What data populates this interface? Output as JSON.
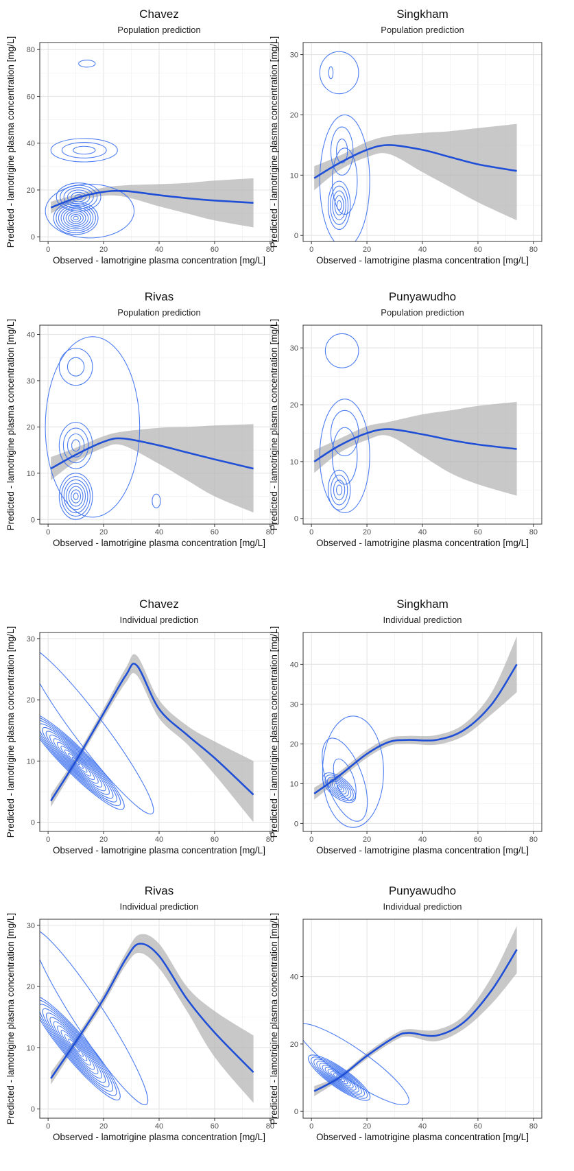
{
  "colors": {
    "contour": "#3a6ff0",
    "smooth": "#1f4fd6",
    "ribbon": "#b3b3b3",
    "grid": "#e6e6e6",
    "border": "#333333"
  },
  "chart_data": [
    {
      "type": "line",
      "title": "Chavez",
      "subtitle": "Population prediction",
      "xlabel": "Observed - lamotrigine plasma concentration [mg/L]",
      "ylabel": "Predicted - lamotrigine plasma concentration [mg/L]",
      "xlim": [
        -3,
        83
      ],
      "ylim": [
        -2,
        83
      ],
      "xticks": [
        0,
        20,
        40,
        60,
        80
      ],
      "yticks": [
        0,
        20,
        40,
        60,
        80
      ],
      "grid": true,
      "series": [
        {
          "x": [
            1,
            10,
            20,
            28,
            40,
            50,
            60,
            74
          ],
          "y": [
            12.5,
            16.5,
            19.2,
            19.5,
            17.8,
            16.5,
            15.5,
            14.5
          ],
          "lower": [
            10,
            15,
            17.5,
            17,
            13,
            10,
            7,
            4
          ],
          "upper": [
            15,
            18,
            21,
            22,
            22.5,
            23,
            24,
            25
          ]
        }
      ],
      "contours": [
        {
          "cx": 10,
          "cy": 8,
          "rx": 8,
          "ry": 7,
          "n": 9
        },
        {
          "cx": 11,
          "cy": 17,
          "rx": 8,
          "ry": 6,
          "n": 6
        },
        {
          "cx": 13,
          "cy": 37,
          "rx": 12,
          "ry": 5,
          "n": 3
        },
        {
          "cx": 14,
          "cy": 74,
          "rx": 3,
          "ry": 1.5,
          "n": 1
        },
        {
          "cx": 15,
          "cy": 11,
          "rx": 16,
          "ry": 11.5,
          "n": 1
        }
      ]
    },
    {
      "type": "line",
      "title": "Singkham",
      "subtitle": "Population prediction",
      "xlabel": "Observed - lamotrigine plasma concentration [mg/L]",
      "ylabel": "Predicted - lamotrigine plasma concentration [mg/L]",
      "xlim": [
        -3,
        83
      ],
      "ylim": [
        -1,
        32
      ],
      "xticks": [
        0,
        20,
        40,
        60,
        80
      ],
      "yticks": [
        0,
        10,
        20,
        30
      ],
      "grid": true,
      "series": [
        {
          "x": [
            1,
            10,
            20,
            28,
            40,
            50,
            60,
            74
          ],
          "y": [
            9.5,
            12,
            14.2,
            15,
            14.2,
            13,
            11.8,
            10.7
          ],
          "lower": [
            7.5,
            10.8,
            13,
            13.5,
            10.5,
            8,
            5.5,
            2.5
          ],
          "upper": [
            11.5,
            13.2,
            15.5,
            16.5,
            17,
            17.3,
            17.8,
            18.5
          ]
        }
      ],
      "contours": [
        {
          "cx": 10,
          "cy": 5,
          "rx": 4,
          "ry": 4,
          "n": 5
        },
        {
          "cx": 11,
          "cy": 14,
          "rx": 4,
          "ry": 4,
          "n": 2
        },
        {
          "cx": 12,
          "cy": 9,
          "rx": 9,
          "ry": 11,
          "n": 2
        },
        {
          "cx": 10,
          "cy": 27,
          "rx": 7,
          "ry": 3.5,
          "n": 1
        },
        {
          "cx": 7,
          "cy": 27,
          "rx": 0.8,
          "ry": 1,
          "n": 1
        }
      ]
    },
    {
      "type": "line",
      "title": "Rivas",
      "subtitle": "Population prediction",
      "xlabel": "Observed - lamotrigine plasma concentration [mg/L]",
      "ylabel": "Predicted - lamotrigine plasma concentration [mg/L]",
      "xlim": [
        -3,
        83
      ],
      "ylim": [
        -1,
        42
      ],
      "xticks": [
        0,
        20,
        40,
        60,
        80
      ],
      "yticks": [
        0,
        10,
        20,
        30,
        40
      ],
      "grid": true,
      "series": [
        {
          "x": [
            1,
            10,
            20,
            27,
            40,
            50,
            60,
            74
          ],
          "y": [
            11,
            14,
            16.8,
            17.5,
            16,
            14.5,
            13,
            11
          ],
          "lower": [
            8.5,
            12.5,
            15.5,
            16,
            12,
            8.5,
            5,
            1.5
          ],
          "upper": [
            13.5,
            15.5,
            18,
            19,
            19.8,
            20,
            20.3,
            20.6
          ]
        }
      ],
      "contours": [
        {
          "cx": 10,
          "cy": 5,
          "rx": 6,
          "ry": 5,
          "n": 7
        },
        {
          "cx": 10,
          "cy": 16,
          "rx": 6,
          "ry": 5,
          "n": 4
        },
        {
          "cx": 10,
          "cy": 33,
          "rx": 6,
          "ry": 4,
          "n": 2
        },
        {
          "cx": 16,
          "cy": 20,
          "rx": 17,
          "ry": 19.5,
          "n": 1
        },
        {
          "cx": 39,
          "cy": 4,
          "rx": 1.5,
          "ry": 1.5,
          "n": 1
        }
      ]
    },
    {
      "type": "line",
      "title": "Punyawudho",
      "subtitle": "Population prediction",
      "xlabel": "Observed - lamotrigine plasma concentration [mg/L]",
      "ylabel": "Predicted - lamotrigine plasma concentration [mg/L]",
      "xlim": [
        -3,
        83
      ],
      "ylim": [
        -1,
        34
      ],
      "xticks": [
        0,
        20,
        40,
        60,
        80
      ],
      "yticks": [
        0,
        10,
        20,
        30
      ],
      "grid": true,
      "series": [
        {
          "x": [
            1,
            10,
            20,
            28,
            40,
            50,
            60,
            74
          ],
          "y": [
            10,
            12.8,
            15,
            15.7,
            14.8,
            13.8,
            13,
            12.2
          ],
          "lower": [
            8,
            11.5,
            13.8,
            14.5,
            11,
            8,
            6,
            4
          ],
          "upper": [
            12,
            14,
            16.2,
            17,
            18.3,
            19,
            19.8,
            20.5
          ]
        }
      ],
      "contours": [
        {
          "cx": 10,
          "cy": 5,
          "rx": 4,
          "ry": 3.5,
          "n": 4
        },
        {
          "cx": 12,
          "cy": 11,
          "rx": 9,
          "ry": 10,
          "n": 2
        },
        {
          "cx": 12,
          "cy": 15,
          "rx": 5,
          "ry": 4,
          "n": 1
        },
        {
          "cx": 11,
          "cy": 29.5,
          "rx": 6,
          "ry": 3,
          "n": 1
        }
      ]
    },
    {
      "type": "line",
      "title": "Chavez",
      "subtitle": "Individual prediction",
      "xlabel": "Observed - lamotrigine plasma concentration [mg/L]",
      "ylabel": "Predicted - lamotrigine plasma concentration [mg/L]",
      "xlim": [
        -3,
        83
      ],
      "ylim": [
        -1.5,
        31
      ],
      "xticks": [
        0,
        20,
        40,
        60,
        80
      ],
      "yticks": [
        0,
        10,
        20,
        30
      ],
      "grid": true,
      "series": [
        {
          "x": [
            1,
            10,
            20,
            28,
            32,
            40,
            50,
            60,
            74
          ],
          "y": [
            3.5,
            10,
            17.8,
            24,
            25.6,
            18.5,
            14.3,
            10.5,
            4.5
          ],
          "lower": [
            2.5,
            9.3,
            17,
            22.8,
            24,
            17,
            12.8,
            7.8,
            0
          ],
          "upper": [
            4.5,
            10.7,
            18.6,
            25.2,
            27.2,
            20,
            15.8,
            13.2,
            10
          ]
        }
      ],
      "contours": [
        {
          "cx": 10,
          "cy": 10,
          "rx": 4.5,
          "ry": 11,
          "rot": 45,
          "n": 13
        },
        {
          "cx": 15,
          "cy": 15,
          "rx": 5.5,
          "ry": 17,
          "rot": 37,
          "n": 1
        }
      ]
    },
    {
      "type": "line",
      "title": "Singkham",
      "subtitle": "Individual prediction",
      "xlabel": "Observed - lamotrigine plasma concentration [mg/L]",
      "ylabel": "Predicted - lamotrigine plasma concentration [mg/L]",
      "xlim": [
        -3,
        83
      ],
      "ylim": [
        -2,
        48
      ],
      "xticks": [
        0,
        20,
        40,
        60,
        80
      ],
      "yticks": [
        0,
        10,
        20,
        30,
        40
      ],
      "grid": true,
      "series": [
        {
          "x": [
            1,
            10,
            20,
            28,
            35,
            45,
            55,
            65,
            74
          ],
          "y": [
            7.5,
            12,
            17.5,
            20.5,
            21,
            21,
            23.5,
            30,
            40
          ],
          "lower": [
            6,
            11,
            16.5,
            19.5,
            20,
            19.8,
            22,
            27.5,
            33
          ],
          "upper": [
            9,
            13,
            18.5,
            21.5,
            22,
            22.2,
            25,
            33,
            47
          ]
        }
      ],
      "contours": [
        {
          "cx": 10,
          "cy": 9,
          "rx": 3.5,
          "ry": 5,
          "rot": 50,
          "n": 7
        },
        {
          "cx": 12,
          "cy": 11,
          "rx": 6.5,
          "ry": 11,
          "rot": 20,
          "n": 2
        },
        {
          "cx": 15,
          "cy": 13,
          "rx": 11,
          "ry": 14,
          "n": 1
        }
      ]
    },
    {
      "type": "line",
      "title": "Rivas",
      "subtitle": "Individual prediction",
      "xlabel": "Observed - lamotrigine plasma concentration [mg/L]",
      "ylabel": "Predicted - lamotrigine plasma concentration [mg/L]",
      "xlim": [
        -3,
        83
      ],
      "ylim": [
        -1.5,
        31
      ],
      "xticks": [
        0,
        20,
        40,
        60,
        80
      ],
      "yticks": [
        0,
        10,
        20,
        30
      ],
      "grid": true,
      "series": [
        {
          "x": [
            1,
            10,
            20,
            28,
            33,
            40,
            50,
            60,
            74
          ],
          "y": [
            5,
            11,
            18,
            24.5,
            27,
            25,
            18,
            12.5,
            6
          ],
          "lower": [
            4,
            10.3,
            17.2,
            23.5,
            25.5,
            23,
            16,
            8.5,
            1
          ],
          "upper": [
            6,
            11.7,
            18.8,
            25.5,
            28.5,
            27,
            20,
            16,
            12
          ]
        }
      ],
      "contours": [
        {
          "cx": 10,
          "cy": 10,
          "rx": 4.5,
          "ry": 11,
          "rot": 40,
          "n": 12
        },
        {
          "cx": 15,
          "cy": 15,
          "rx": 5.5,
          "ry": 17,
          "rot": 33,
          "n": 1
        }
      ]
    },
    {
      "type": "line",
      "title": "Punyawudho",
      "subtitle": "Individual prediction",
      "xlabel": "Observed - lamotrigine plasma concentration [mg/L]",
      "ylabel": "Predicted - lamotrigine plasma concentration [mg/L]",
      "xlim": [
        -3,
        83
      ],
      "ylim": [
        -2,
        57
      ],
      "xticks": [
        0,
        20,
        40,
        60,
        80
      ],
      "yticks": [
        0,
        20,
        40
      ],
      "grid": true,
      "series": [
        {
          "x": [
            1,
            10,
            20,
            30,
            35,
            45,
            55,
            65,
            74
          ],
          "y": [
            6,
            10,
            16.5,
            22,
            23.3,
            22.5,
            26.5,
            36,
            48
          ],
          "lower": [
            4.5,
            9.3,
            15.6,
            21,
            22.2,
            20.8,
            24.5,
            32,
            41
          ],
          "upper": [
            7.5,
            10.7,
            17.4,
            23,
            24.4,
            24.2,
            28.5,
            40,
            55
          ]
        }
      ],
      "contours": [
        {
          "cx": 10,
          "cy": 10,
          "rx": 3.5,
          "ry": 11,
          "rot": 55,
          "n": 11
        },
        {
          "cx": 15,
          "cy": 14,
          "rx": 5.5,
          "ry": 20,
          "rot": 55,
          "n": 1
        }
      ]
    }
  ]
}
